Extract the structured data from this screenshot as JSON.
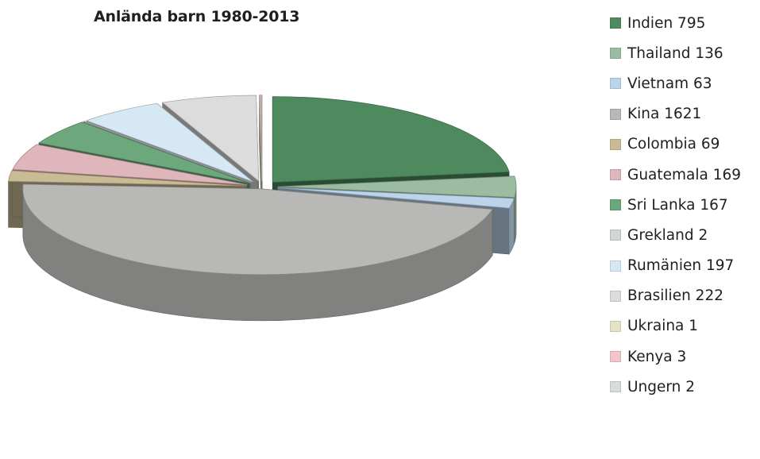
{
  "chart_data": {
    "type": "pie",
    "style": "3d-exploded",
    "title": "Anlända barn 1980-2013",
    "legend_position": "right",
    "slices": [
      {
        "label": "Indien 795",
        "name": "Indien",
        "value": 795,
        "color": "#4f8a5e"
      },
      {
        "label": "Thailand 136",
        "name": "Thailand",
        "value": 136,
        "color": "#9cbca2"
      },
      {
        "label": "Vietnam 63",
        "name": "Vietnam",
        "value": 63,
        "color": "#bcd4ea"
      },
      {
        "label": "Kina 1621",
        "name": "Kina",
        "value": 1621,
        "color": "#b8b8b6"
      },
      {
        "label": "Colombia 69",
        "name": "Colombia",
        "value": 69,
        "color": "#c9bc94"
      },
      {
        "label": "Guatemala 169",
        "name": "Guatemala",
        "value": 169,
        "color": "#dfb6bc"
      },
      {
        "label": "Sri Lanka 167",
        "name": "Sri Lanka",
        "value": 167,
        "color": "#6da77c"
      },
      {
        "label": "Grekland 2",
        "name": "Grekland",
        "value": 2,
        "color": "#d2d6d4"
      },
      {
        "label": "Rumänien 197",
        "name": "Rumänien",
        "value": 197,
        "color": "#d6e8f4"
      },
      {
        "label": "Brasilien 222",
        "name": "Brasilien",
        "value": 222,
        "color": "#dcdcdc"
      },
      {
        "label": "Ukraina 1",
        "name": "Ukraina",
        "value": 1,
        "color": "#e6e2c8"
      },
      {
        "label": "Kenya 3",
        "name": "Kenya",
        "value": 3,
        "color": "#f2c4cc"
      },
      {
        "label": "Ungern 2",
        "name": "Ungern",
        "value": 2,
        "color": "#d9dcdc"
      }
    ]
  }
}
